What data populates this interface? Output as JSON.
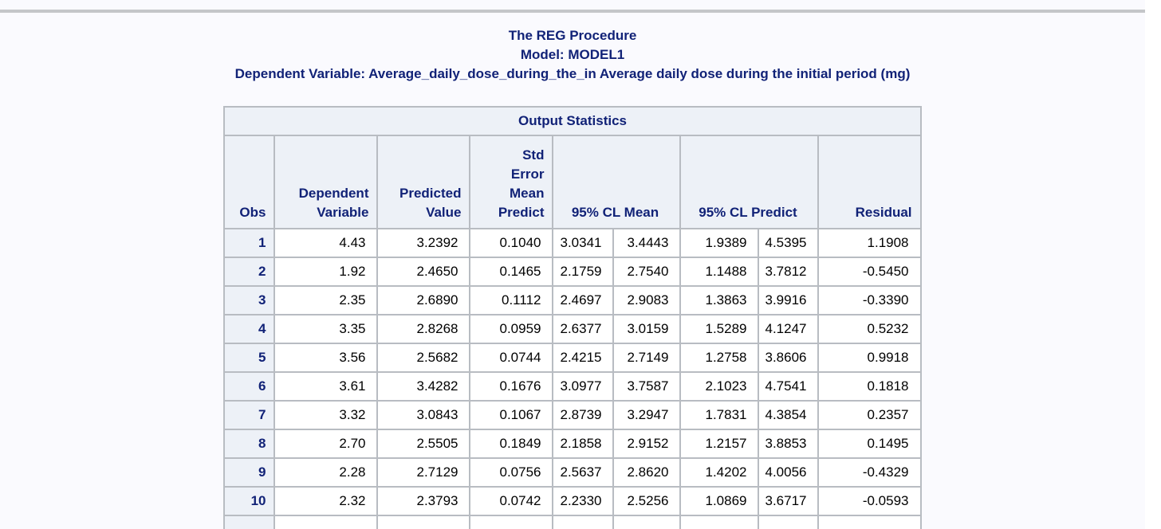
{
  "page": {
    "titles": [
      "The REG Procedure",
      "Model: MODEL1",
      "Dependent Variable: Average_daily_dose_during_the_in Average daily dose during the initial period (mg)"
    ]
  },
  "table": {
    "title": "Output Statistics",
    "headers": {
      "obs": "Obs",
      "dependent_variable": "Dependent\nVariable",
      "predicted_value": "Predicted\nValue",
      "std_error_mean_predict": "Std\nError\nMean\nPredict",
      "cl_mean": "95% CL Mean",
      "cl_predict": "95% CL Predict",
      "residual": "Residual"
    },
    "rows": [
      [
        "1",
        "4.43",
        "3.2392",
        "0.1040",
        "3.0341",
        "3.4443",
        "1.9389",
        "4.5395",
        "1.1908"
      ],
      [
        "2",
        "1.92",
        "2.4650",
        "0.1465",
        "2.1759",
        "2.7540",
        "1.1488",
        "3.7812",
        "-0.5450"
      ],
      [
        "3",
        "2.35",
        "2.6890",
        "0.1112",
        "2.4697",
        "2.9083",
        "1.3863",
        "3.9916",
        "-0.3390"
      ],
      [
        "4",
        "3.35",
        "2.8268",
        "0.0959",
        "2.6377",
        "3.0159",
        "1.5289",
        "4.1247",
        "0.5232"
      ],
      [
        "5",
        "3.56",
        "2.5682",
        "0.0744",
        "2.4215",
        "2.7149",
        "1.2758",
        "3.8606",
        "0.9918"
      ],
      [
        "6",
        "3.61",
        "3.4282",
        "0.1676",
        "3.0977",
        "3.7587",
        "2.1023",
        "4.7541",
        "0.1818"
      ],
      [
        "7",
        "3.32",
        "3.0843",
        "0.1067",
        "2.8739",
        "3.2947",
        "1.7831",
        "4.3854",
        "0.2357"
      ],
      [
        "8",
        "2.70",
        "2.5505",
        "0.1849",
        "2.1858",
        "2.9152",
        "1.2157",
        "3.8853",
        "0.1495"
      ],
      [
        "9",
        "2.28",
        "2.7129",
        "0.0756",
        "2.5637",
        "2.8620",
        "1.4202",
        "4.0056",
        "-0.4329"
      ],
      [
        "10",
        "2.32",
        "2.3793",
        "0.0742",
        "2.2330",
        "2.5256",
        "1.0869",
        "3.6717",
        "-0.0593"
      ]
    ],
    "partial_next_row": true
  },
  "colors": {
    "title_text": "#112277",
    "header_bg": "#edf1f7",
    "cell_border": "#b8bcc2",
    "page_bg": "#fafafe",
    "top_rule": "#c4c6c9",
    "data_text": "#000000"
  }
}
